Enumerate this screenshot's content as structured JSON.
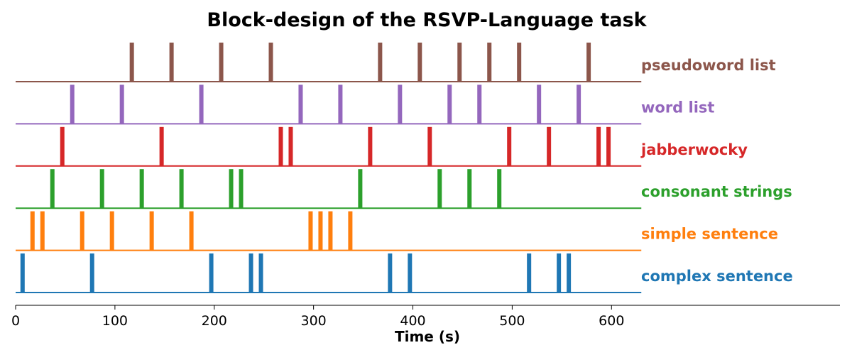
{
  "chart_data": {
    "type": "event-raster",
    "title": "Block-design of the RSVP-Language task",
    "xlabel": "Time (s)",
    "xlim": [
      0,
      830
    ],
    "data_xmax": 630,
    "xticks": [
      0,
      100,
      200,
      300,
      400,
      500,
      600
    ],
    "xtick_labels": [
      "0",
      "100",
      "200",
      "300",
      "400",
      "500",
      "600"
    ],
    "grid": false,
    "series": [
      {
        "name": "pseudoword list",
        "color": "#8c564b",
        "onsets": [
          117,
          157,
          207,
          257,
          367,
          407,
          447,
          477,
          507,
          577
        ]
      },
      {
        "name": "word list",
        "color": "#9467bd",
        "onsets": [
          57,
          107,
          187,
          287,
          327,
          387,
          437,
          467,
          527,
          567
        ]
      },
      {
        "name": "jabberwocky",
        "color": "#d62728",
        "onsets": [
          47,
          147,
          267,
          277,
          357,
          417,
          497,
          537,
          587,
          597
        ]
      },
      {
        "name": "consonant strings",
        "color": "#2ca02c",
        "onsets": [
          37,
          87,
          127,
          167,
          217,
          227,
          347,
          427,
          457,
          487
        ]
      },
      {
        "name": "simple sentence",
        "color": "#ff7f0e",
        "onsets": [
          17,
          27,
          67,
          97,
          137,
          177,
          297,
          307,
          317,
          337
        ]
      },
      {
        "name": "complex sentence",
        "color": "#1f77b4",
        "onsets": [
          7,
          77,
          197,
          237,
          247,
          377,
          397,
          517,
          547,
          557
        ]
      }
    ]
  }
}
